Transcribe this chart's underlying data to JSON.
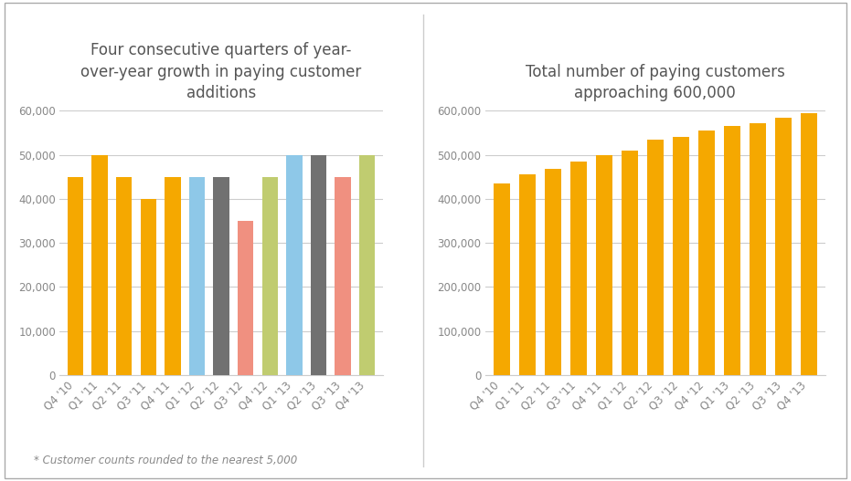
{
  "left_title": "Four consecutive quarters of year-\nover-year growth in paying customer\nadditions",
  "right_title": "Total number of paying customers\napproaching 600,000",
  "footnote": "* Customer counts rounded to the nearest 5,000",
  "left_categories": [
    "Q4 '10",
    "Q1 '11",
    "Q2 '11",
    "Q3 '11",
    "Q4 '11",
    "Q1 '12",
    "Q2 '12",
    "Q3 '12",
    "Q4 '12",
    "Q1 '13",
    "Q2 '13",
    "Q3 '13",
    "Q4 '13"
  ],
  "left_values": [
    45000,
    50000,
    45000,
    40000,
    45000,
    45000,
    45000,
    35000,
    45000,
    50000,
    50000,
    45000,
    50000
  ],
  "left_colors": [
    "#F5A800",
    "#F5A800",
    "#F5A800",
    "#F5A800",
    "#F5A800",
    "#8EC8E8",
    "#717171",
    "#F09080",
    "#C0CC70",
    "#8EC8E8",
    "#717171",
    "#F09080",
    "#C0CC70"
  ],
  "right_categories": [
    "Q4 '10",
    "Q1 '11",
    "Q2 '11",
    "Q3 '11",
    "Q4 '11",
    "Q1 '12",
    "Q2 '12",
    "Q3 '12",
    "Q4 '12",
    "Q1 '13",
    "Q2 '13",
    "Q3 '13",
    "Q4 '13"
  ],
  "right_values": [
    435000,
    455000,
    468000,
    485000,
    500000,
    510000,
    535000,
    540000,
    555000,
    565000,
    572000,
    583000,
    595000
  ],
  "right_color": "#F5A800",
  "left_ylim": [
    0,
    60000
  ],
  "left_yticks": [
    0,
    10000,
    20000,
    30000,
    40000,
    50000,
    60000
  ],
  "right_ylim": [
    0,
    600000
  ],
  "right_yticks": [
    0,
    100000,
    200000,
    300000,
    400000,
    500000,
    600000
  ],
  "bg_color": "#FFFFFF",
  "title_color": "#555555",
  "tick_color": "#888888",
  "grid_color": "#CCCCCC",
  "title_fontsize": 12,
  "tick_fontsize": 8.5
}
